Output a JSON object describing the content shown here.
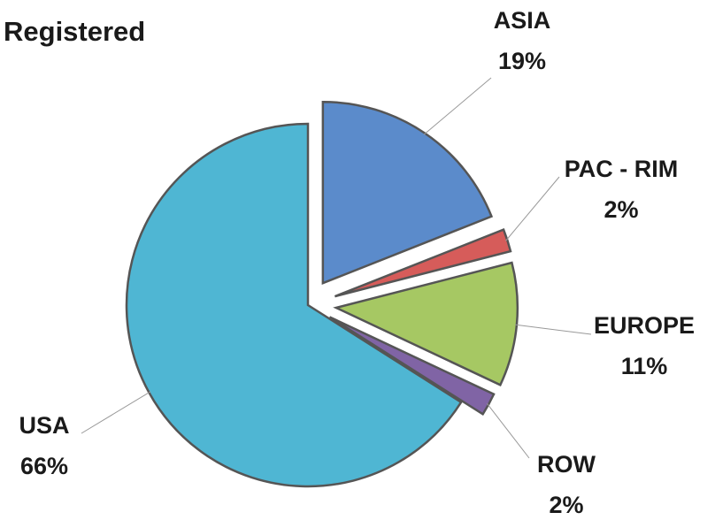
{
  "chart_data": {
    "type": "pie",
    "title": "Registered",
    "categories": [
      "ASIA",
      "PAC - RIM",
      "EUROPE",
      "ROW",
      "USA"
    ],
    "values": [
      19,
      2,
      11,
      2,
      66
    ],
    "value_labels": [
      "19%",
      "2%",
      "11%",
      "2%",
      "66%"
    ],
    "colors": [
      "#5b8bcb",
      "#d65c5a",
      "#a6c863",
      "#8064a5",
      "#4fb6d3"
    ]
  }
}
